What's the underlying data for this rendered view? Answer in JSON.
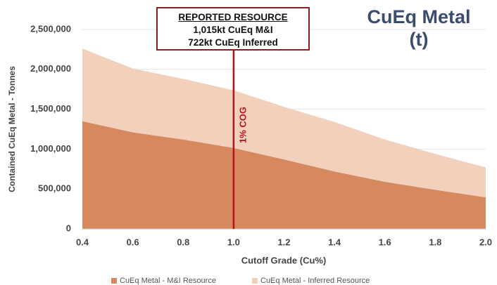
{
  "chart_data": {
    "type": "area",
    "stacked": true,
    "title": "CuEq Metal (t)",
    "x_label": "Cutoff Grade (Cu%)",
    "y_label": "Contained CuEq Metal - Tonnes",
    "x": [
      0.4,
      0.6,
      0.8,
      1.0,
      1.2,
      1.4,
      1.6,
      1.8,
      2.0
    ],
    "series": [
      {
        "name": "CuEq Metal - M&I Resource",
        "color": "#d6895f",
        "values": [
          1350000,
          1210000,
          1120000,
          1015000,
          870000,
          720000,
          590000,
          490000,
          395000
        ]
      },
      {
        "name": "CuEq Metal - Inferred Resource",
        "color": "#f2d0bc",
        "values": [
          910000,
          800000,
          760000,
          722000,
          660000,
          620000,
          530000,
          450000,
          375000
        ]
      }
    ],
    "xlim": [
      0.4,
      2.0
    ],
    "xticks": [
      0.4,
      0.6,
      0.8,
      {
        "value": 1,
        "label": "1.0"
      },
      1.2,
      1.4,
      1.6,
      1.8,
      {
        "value": 2,
        "label": "2.0"
      }
    ],
    "ylim": [
      0,
      2500000
    ],
    "yticks": [
      0,
      {
        "value": 500000,
        "label": "500,000"
      },
      {
        "value": 1000000,
        "label": "1,000,000"
      },
      {
        "value": 1500000,
        "label": "1,500,000"
      },
      {
        "value": 2000000,
        "label": "2,000,000"
      },
      {
        "value": 2500000,
        "label": "2,500,000"
      }
    ],
    "grid": true,
    "legend": "bottom",
    "annotations": [
      {
        "type": "vline",
        "x": 1,
        "text": "1% COG",
        "color": "#b5121b"
      },
      {
        "type": "box",
        "lines": [
          "REPORTED RESOURCE",
          "1,015kt CuEq M&I",
          "722kt CuEq Inferred"
        ]
      }
    ]
  }
}
